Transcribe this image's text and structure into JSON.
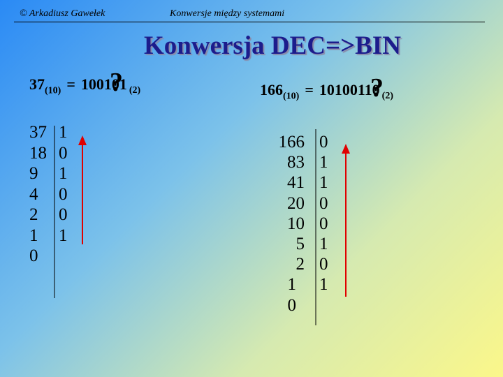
{
  "header": {
    "author": "© Arkadiusz Gawełek",
    "topic": "Konwersje między systemami"
  },
  "title": "Konwersja DEC=>BIN",
  "examples": [
    {
      "equation": {
        "decimal": "37",
        "decimal_base": "(10)",
        "equals": "=",
        "binary": "100101",
        "binary_base": "(2)",
        "mark": "?"
      },
      "quotients": [
        "37",
        "18",
        "9",
        "4",
        "2",
        "1",
        "0"
      ],
      "remainders": [
        "1",
        "0",
        "1",
        "0",
        "0",
        "1"
      ]
    },
    {
      "equation": {
        "decimal": "166",
        "decimal_base": "(10)",
        "equals": "=",
        "binary": "10100110",
        "binary_base": "(2)",
        "mark": "?"
      },
      "quotients": [
        "166",
        "83",
        "41",
        "20",
        "10",
        "5",
        "2",
        "1",
        "0"
      ],
      "remainders": [
        "0",
        "1",
        "1",
        "0",
        "0",
        "1",
        "0",
        "1"
      ]
    }
  ]
}
